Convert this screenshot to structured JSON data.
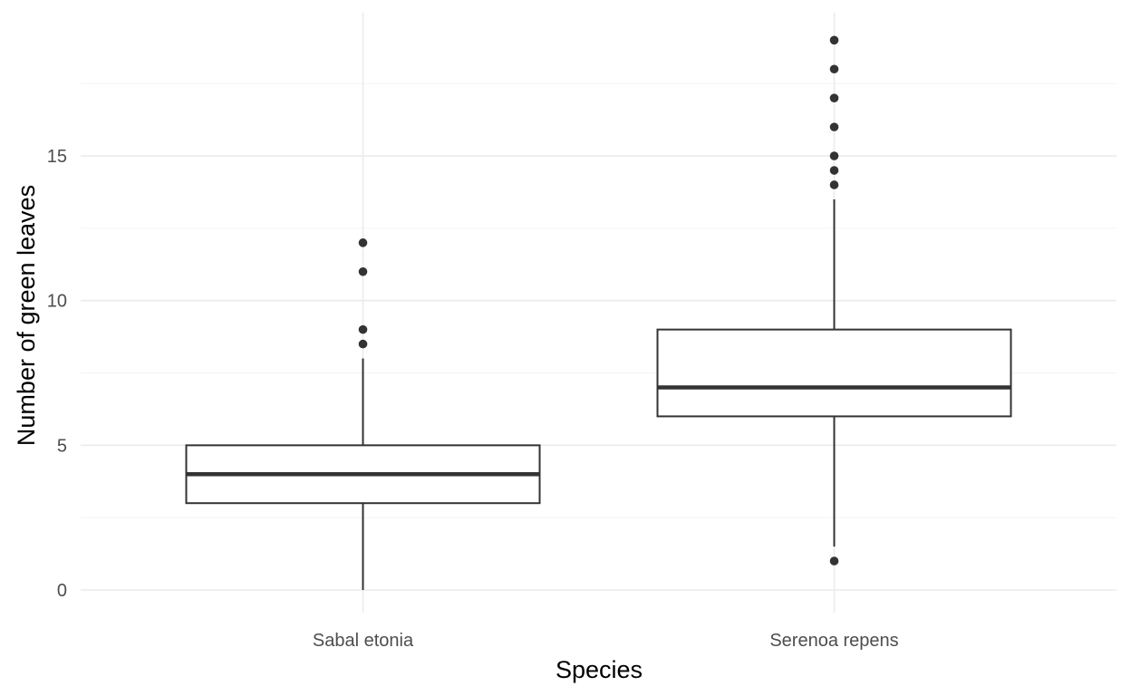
{
  "chart_data": {
    "type": "boxplot",
    "title": "",
    "xlabel": "Species",
    "ylabel": "Number of green leaves",
    "categories": [
      "Sabal etonia",
      "Serenoa repens"
    ],
    "ylim": [
      -0.8,
      20
    ],
    "y_ticks": [
      0,
      5,
      10,
      15
    ],
    "y_tick_labels": [
      "0",
      "5",
      "10",
      "15"
    ],
    "grid": true,
    "legend": "none",
    "boxes": [
      {
        "category": "Sabal etonia",
        "whisker_low": 0,
        "q1": 3,
        "median": 4,
        "q3": 5,
        "whisker_high": 8,
        "outliers": [
          8.5,
          9,
          11,
          12
        ]
      },
      {
        "category": "Serenoa repens",
        "whisker_low": 1.5,
        "q1": 6,
        "median": 7,
        "q3": 9,
        "whisker_high": 13.5,
        "outliers": [
          1,
          14,
          14.5,
          15,
          16,
          17,
          18,
          19
        ]
      }
    ],
    "colors": {
      "background": "#ffffff",
      "grid_major": "#ebebeb",
      "grid_minor": "#f3f3f3",
      "box_stroke": "#333333",
      "point_fill": "#333333",
      "tick_text": "#4d4d4d",
      "title_text": "#000000"
    }
  }
}
